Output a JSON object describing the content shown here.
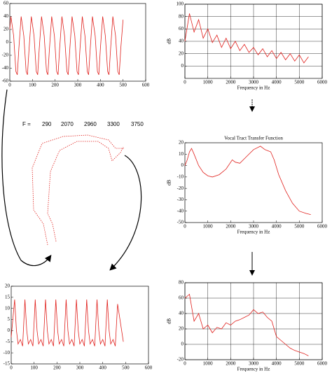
{
  "chart_data": [
    {
      "type": "line",
      "color": "#e0201c",
      "grid": false,
      "x": [
        0,
        5,
        17,
        27,
        33,
        40,
        50,
        62,
        72,
        78,
        85,
        95,
        107,
        117,
        123,
        130,
        140,
        152,
        162,
        168,
        175,
        185,
        197,
        207,
        213,
        220,
        230,
        242,
        252,
        258,
        265,
        275,
        287,
        297,
        303,
        310,
        320,
        332,
        342,
        348,
        355,
        365,
        377,
        387,
        393,
        400,
        410,
        422,
        432,
        438,
        445,
        455,
        467,
        477,
        483,
        490,
        500
      ],
      "values": [
        20,
        40,
        10,
        -45,
        -50,
        -10,
        40,
        10,
        -45,
        -50,
        -10,
        40,
        10,
        -45,
        -50,
        -10,
        40,
        10,
        -45,
        -50,
        -10,
        40,
        10,
        -45,
        -50,
        -10,
        40,
        10,
        -45,
        -50,
        -10,
        40,
        10,
        -45,
        -50,
        -10,
        40,
        10,
        -45,
        -50,
        -10,
        40,
        10,
        -45,
        -50,
        -10,
        40,
        10,
        -45,
        -50,
        -10,
        40,
        10,
        -45,
        -50,
        -10,
        35
      ],
      "xlim": [
        0,
        600
      ],
      "xticks": [
        0,
        100,
        200,
        300,
        400,
        500,
        600
      ],
      "ylim": [
        -60,
        60
      ],
      "yticks": [
        -60,
        -40,
        -20,
        0,
        20,
        40,
        60
      ]
    },
    {
      "type": "line",
      "color": "#e0201c",
      "grid": true,
      "x_label": "Frequency in Hz",
      "y_label": "dB",
      "x": [
        0,
        200,
        400,
        600,
        800,
        1000,
        1200,
        1400,
        1600,
        1800,
        2000,
        2200,
        2400,
        2600,
        2800,
        3000,
        3200,
        3400,
        3600,
        3800,
        4000,
        4200,
        4400,
        4600,
        4800,
        5000,
        5200,
        5400
      ],
      "values": [
        40,
        85,
        55,
        75,
        45,
        60,
        38,
        50,
        30,
        45,
        28,
        40,
        25,
        35,
        22,
        30,
        18,
        28,
        15,
        25,
        12,
        22,
        10,
        20,
        8,
        18,
        5,
        15
      ],
      "xlim": [
        0,
        6000
      ],
      "xticks": [
        0,
        1000,
        2000,
        3000,
        4000,
        5000,
        6000
      ],
      "ylim": [
        -20,
        100
      ],
      "yticks": [
        0,
        20,
        40,
        60,
        80,
        100
      ]
    },
    {
      "type": "line",
      "color": "#e0201c",
      "grid": false,
      "title": "Vocal Tract Transfer Function",
      "x_label": "Frequency in Hz",
      "y_label": "dB",
      "x": [
        0,
        100,
        200,
        290,
        400,
        600,
        800,
        1000,
        1200,
        1500,
        1800,
        2070,
        2200,
        2400,
        2700,
        3000,
        3300,
        3500,
        3750,
        3900,
        4100,
        4400,
        4700,
        5000,
        5300,
        5500
      ],
      "values": [
        0,
        5,
        12,
        15,
        10,
        0,
        -6,
        -9,
        -10,
        -8,
        -3,
        5,
        3,
        2,
        8,
        14,
        17,
        14,
        12,
        5,
        -8,
        -22,
        -33,
        -40,
        -42,
        -43
      ],
      "xlim": [
        0,
        6000
      ],
      "xticks": [
        0,
        1000,
        2000,
        3000,
        4000,
        5000,
        6000
      ],
      "ylim": [
        -50,
        20
      ],
      "yticks": [
        -50,
        -40,
        -30,
        -20,
        -10,
        0,
        10,
        20
      ]
    },
    {
      "type": "line",
      "color": "#e0201c",
      "grid": false,
      "x": [
        0,
        15,
        23,
        30,
        40,
        50,
        60,
        68,
        75,
        85,
        95,
        105,
        113,
        120,
        130,
        140,
        150,
        158,
        165,
        175,
        185,
        195,
        203,
        210,
        220,
        230,
        240,
        248,
        255,
        265,
        275,
        285,
        293,
        300,
        310,
        320,
        330,
        338,
        345,
        355,
        365,
        375,
        383,
        390,
        400,
        410,
        420,
        428,
        435,
        445,
        455,
        465,
        490
      ],
      "values": [
        -3,
        14,
        0,
        -6,
        -4,
        -7,
        14,
        0,
        -6,
        -4,
        -7,
        14,
        0,
        -6,
        -4,
        -7,
        14,
        0,
        -6,
        -4,
        -7,
        14,
        0,
        -6,
        -4,
        -7,
        14,
        0,
        -6,
        -4,
        -7,
        14,
        0,
        -6,
        -4,
        -7,
        14,
        0,
        -6,
        -4,
        -7,
        14,
        0,
        -6,
        -4,
        -7,
        14,
        0,
        -6,
        -4,
        -7,
        12,
        -5
      ],
      "xlim": [
        0,
        600
      ],
      "xticks": [
        0,
        100,
        200,
        300,
        400,
        500,
        600
      ],
      "ylim": [
        -15,
        20
      ],
      "yticks": [
        -15,
        -10,
        -5,
        0,
        5,
        10,
        15,
        20
      ]
    },
    {
      "type": "line",
      "color": "#e0201c",
      "grid": true,
      "x_label": "Frequency in Hz",
      "y_label": "dB",
      "x": [
        0,
        200,
        400,
        600,
        800,
        1000,
        1200,
        1400,
        1600,
        1800,
        2000,
        2200,
        2400,
        2600,
        2800,
        3000,
        3200,
        3400,
        3600,
        3800,
        4000,
        4200,
        4400,
        4600,
        4800,
        5000,
        5200,
        5400
      ],
      "values": [
        60,
        65,
        30,
        40,
        20,
        25,
        15,
        22,
        20,
        28,
        25,
        30,
        32,
        35,
        38,
        45,
        40,
        42,
        35,
        30,
        10,
        5,
        0,
        -5,
        -8,
        -10,
        -12,
        -15
      ],
      "xlim": [
        0,
        6000
      ],
      "xticks": [
        0,
        1000,
        2000,
        3000,
        4000,
        5000,
        6000
      ],
      "ylim": [
        -20,
        80
      ],
      "yticks": [
        -20,
        0,
        20,
        40,
        60,
        80
      ]
    }
  ],
  "formants": {
    "label": "F =",
    "values": [
      290,
      2070,
      2960,
      3300,
      3750
    ]
  }
}
